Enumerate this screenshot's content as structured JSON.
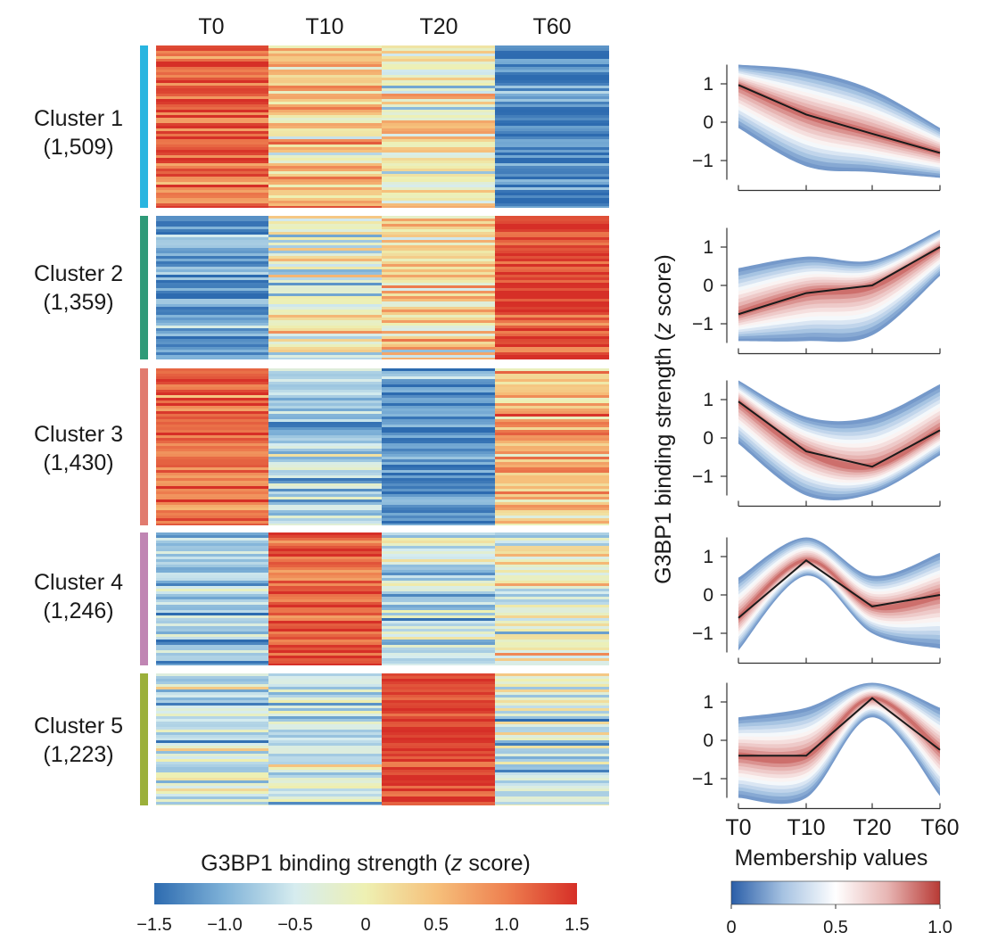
{
  "chart_data": [
    {
      "type": "heatmap",
      "title": "",
      "columns": [
        "T0",
        "T10",
        "T20",
        "T60"
      ],
      "clusters": [
        {
          "label": "Cluster 1",
          "count": "(1,509)",
          "color": "#29b5e0",
          "values": [
            1.15,
            0.5,
            -0.15,
            -1.3
          ]
        },
        {
          "label": "Cluster 2",
          "count": "(1,359)",
          "color": "#2e9a78",
          "values": [
            -1.15,
            -0.25,
            0.3,
            1.35
          ]
        },
        {
          "label": "Cluster 3",
          "count": "(1,430)",
          "color": "#e17b6f",
          "values": [
            1.15,
            -0.8,
            -1.2,
            0.55
          ]
        },
        {
          "label": "Cluster 4",
          "count": "(1,246)",
          "color": "#c085b3",
          "values": [
            -0.85,
            1.3,
            -0.45,
            -0.2
          ]
        },
        {
          "label": "Cluster 5",
          "count": "(1,223)",
          "color": "#9bb03a",
          "values": [
            -0.45,
            -0.6,
            1.35,
            -0.45
          ]
        }
      ],
      "colorbar": {
        "label": "G3BP1 binding strength (",
        "label_italic": "z",
        "label_suffix": " score)",
        "ticks": [
          "−1.5",
          "−1.0",
          "−0.5",
          "0",
          "0.5",
          "1.0",
          "1.5"
        ],
        "tick_values": [
          -1.5,
          -1.0,
          -0.5,
          0,
          0.5,
          1.0,
          1.5
        ],
        "range": [
          -1.5,
          1.5
        ],
        "colors": [
          "#2d6bb0",
          "#7fb2d8",
          "#d6ecef",
          "#eef0b2",
          "#f6c07b",
          "#ee8050",
          "#d62f27"
        ]
      }
    },
    {
      "type": "line",
      "x": [
        "T0",
        "T10",
        "T20",
        "T60"
      ],
      "ylabel": "G3BP1 binding strength (",
      "ylabel_italic": "z",
      "ylabel_suffix": " score)",
      "xlabel": "Membership values",
      "ylim": [
        -1.5,
        1.5
      ],
      "yticks": [
        "1",
        "0",
        "−1"
      ],
      "ytick_values": [
        1,
        0,
        -1
      ],
      "panels": [
        {
          "cluster": "Cluster 1",
          "mean": [
            0.97,
            0.2,
            -0.3,
            -0.8
          ],
          "upper": [
            1.5,
            1.35,
            0.85,
            -0.15
          ],
          "lower": [
            -0.15,
            -1.15,
            -1.3,
            -1.45
          ]
        },
        {
          "cluster": "Cluster 2",
          "mean": [
            -0.75,
            -0.2,
            0.0,
            1.0
          ],
          "upper": [
            0.45,
            0.75,
            0.65,
            1.45
          ],
          "lower": [
            -1.45,
            -1.45,
            -1.3,
            0.25
          ]
        },
        {
          "cluster": "Cluster 3",
          "mean": [
            0.95,
            -0.35,
            -0.75,
            0.2
          ],
          "upper": [
            1.5,
            0.55,
            0.55,
            1.4
          ],
          "lower": [
            -0.15,
            -1.5,
            -1.45,
            -0.45
          ]
        },
        {
          "cluster": "Cluster 4",
          "mean": [
            -0.6,
            0.9,
            -0.3,
            0.0
          ],
          "upper": [
            0.45,
            1.5,
            0.5,
            1.1
          ],
          "lower": [
            -1.45,
            0.5,
            -1.0,
            -1.4
          ]
        },
        {
          "cluster": "Cluster 5",
          "mean": [
            -0.4,
            -0.4,
            1.1,
            -0.25
          ],
          "upper": [
            0.6,
            0.85,
            1.5,
            0.85
          ],
          "lower": [
            -1.5,
            -1.5,
            0.6,
            -1.45
          ]
        }
      ],
      "colorbar": {
        "label": "Membership values",
        "ticks": [
          "0",
          "0.5",
          "1.0"
        ],
        "tick_values": [
          0,
          0.5,
          1.0
        ],
        "range": [
          0,
          1
        ],
        "colors": [
          "#2a5ea8",
          "#a7c3e2",
          "#ffffff",
          "#e7b5b3",
          "#b83a35"
        ]
      }
    }
  ]
}
